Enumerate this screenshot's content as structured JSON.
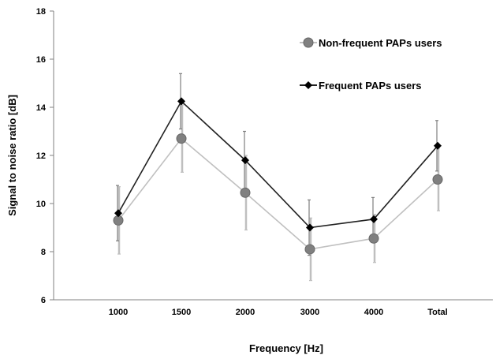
{
  "chart_data": {
    "type": "line",
    "title": "",
    "xlabel": "Frequency [Hz]",
    "ylabel": "Signal to noise ratio [dB]",
    "categories": [
      "1000",
      "1500",
      "2000",
      "3000",
      "4000",
      "Total"
    ],
    "ylim": [
      6,
      18
    ],
    "yticks": [
      6,
      8,
      10,
      12,
      14,
      16,
      18
    ],
    "grid": false,
    "legend_position": "top-right",
    "series": [
      {
        "name": "Non-frequent PAPs users",
        "marker": "circle",
        "line_color": "#c0c0c0",
        "marker_color": "#808080",
        "error_color": "#bfbfbf",
        "values": [
          9.3,
          12.7,
          10.45,
          8.1,
          8.55,
          11.0
        ],
        "error": [
          1.4,
          1.4,
          1.55,
          1.3,
          1.0,
          1.3
        ]
      },
      {
        "name": "Frequent PAPs users",
        "marker": "diamond",
        "line_color": "#222222",
        "marker_color": "#000000",
        "error_color": "#7f7f7f",
        "values": [
          9.6,
          14.25,
          11.8,
          9.0,
          9.35,
          12.4
        ],
        "error": [
          1.15,
          1.15,
          1.2,
          1.15,
          0.9,
          1.05
        ]
      }
    ]
  }
}
